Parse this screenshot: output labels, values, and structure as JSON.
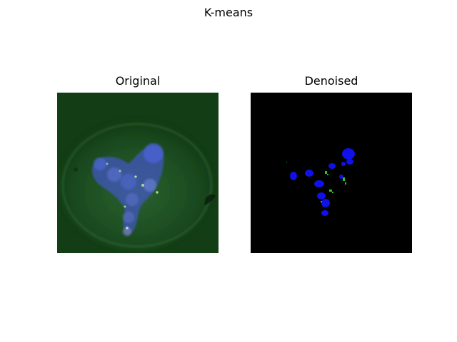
{
  "figure": {
    "title": "K-means"
  },
  "panels": [
    {
      "title": "Original",
      "image": "fluorescence-microscopy-cell-original"
    },
    {
      "title": "Denoised",
      "image": "kmeans-segmented-cell-denoised"
    }
  ],
  "colors": {
    "background": "#ffffff",
    "original_bg": "#0f3a0f",
    "nucleus_blue": "#3a55d6",
    "denoised_bg": "#000000",
    "denoised_blue": "#1010e8",
    "denoised_green": "#22cc22"
  }
}
